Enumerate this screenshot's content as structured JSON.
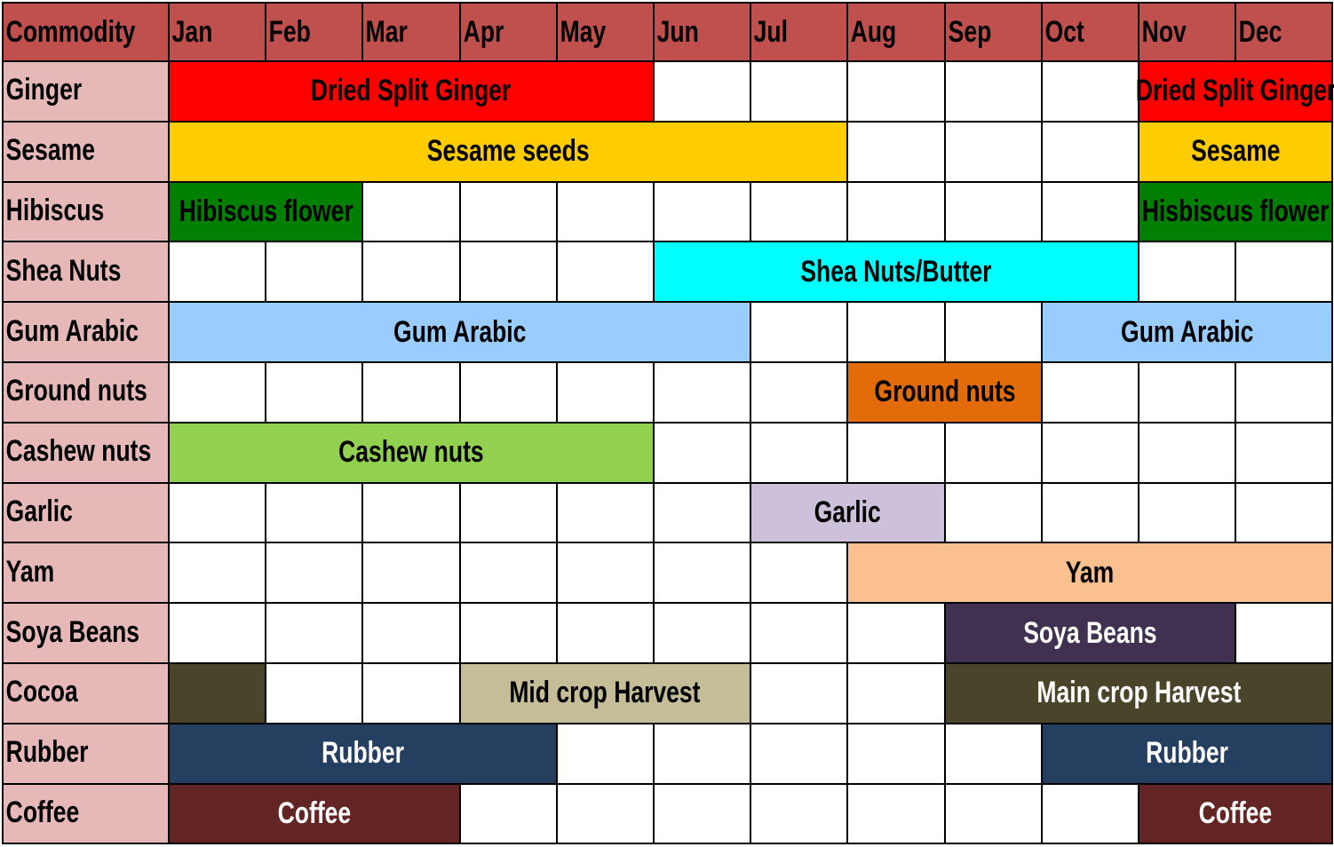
{
  "chart_data": {
    "type": "table",
    "header_label": "Commodity",
    "months": [
      "Jan",
      "Feb",
      "Mar",
      "Apr",
      "May",
      "Jun",
      "Jul",
      "Aug",
      "Sep",
      "Oct",
      "Nov",
      "Dec"
    ],
    "commodities": [
      "Ginger",
      "Sesame",
      "Hibiscus",
      "Shea Nuts",
      "Gum Arabic",
      "Ground nuts",
      "Cashew nuts",
      "Garlic",
      "Yam",
      "Soya Beans",
      "Cocoa",
      "Rubber",
      "Coffee"
    ],
    "colors": {
      "header_bg": "#c0504d",
      "label_bg": "#e6b9b8"
    },
    "bars": [
      {
        "row": 0,
        "start": 0,
        "end": 4,
        "label": "Dried Split Ginger",
        "color": "#ff0000",
        "text_color": "#000000"
      },
      {
        "row": 0,
        "start": 10,
        "end": 11,
        "label": "Dried Split Ginger",
        "color": "#ff0000",
        "text_color": "#000000"
      },
      {
        "row": 1,
        "start": 0,
        "end": 6,
        "label": "Sesame seeds",
        "color": "#ffcc00",
        "text_color": "#000000"
      },
      {
        "row": 1,
        "start": 10,
        "end": 11,
        "label": "Sesame",
        "color": "#ffcc00",
        "text_color": "#000000"
      },
      {
        "row": 2,
        "start": 0,
        "end": 1,
        "label": "Hibiscus flower",
        "color": "#007f00",
        "text_color": "#000000"
      },
      {
        "row": 2,
        "start": 10,
        "end": 11,
        "label": "Hisbiscus flower",
        "color": "#007f00",
        "text_color": "#000000"
      },
      {
        "row": 3,
        "start": 5,
        "end": 9,
        "label": "Shea Nuts/Butter",
        "color": "#00ffff",
        "text_color": "#000000"
      },
      {
        "row": 4,
        "start": 0,
        "end": 5,
        "label": "Gum Arabic",
        "color": "#99ccff",
        "text_color": "#000000"
      },
      {
        "row": 4,
        "start": 9,
        "end": 11,
        "label": "Gum Arabic",
        "color": "#99ccff",
        "text_color": "#000000"
      },
      {
        "row": 5,
        "start": 7,
        "end": 8,
        "label": "Ground nuts",
        "color": "#e36c0a",
        "text_color": "#000000"
      },
      {
        "row": 6,
        "start": 0,
        "end": 4,
        "label": "Cashew nuts",
        "color": "#92d050",
        "text_color": "#000000"
      },
      {
        "row": 7,
        "start": 6,
        "end": 7,
        "label": "Garlic",
        "color": "#ccc0da",
        "text_color": "#000000"
      },
      {
        "row": 8,
        "start": 7,
        "end": 11,
        "label": "Yam",
        "color": "#fac090",
        "text_color": "#000000"
      },
      {
        "row": 9,
        "start": 8,
        "end": 10,
        "label": "Soya Beans",
        "color": "#403151",
        "text_color": "#ffffff"
      },
      {
        "row": 10,
        "start": 0,
        "end": 0,
        "label": "",
        "color": "#4a452a",
        "text_color": "#ffffff"
      },
      {
        "row": 10,
        "start": 3,
        "end": 5,
        "label": "Mid crop Harvest",
        "color": "#c4bd97",
        "text_color": "#000000"
      },
      {
        "row": 10,
        "start": 8,
        "end": 11,
        "label": "Main crop Harvest",
        "color": "#4a452a",
        "text_color": "#ffffff"
      },
      {
        "row": 11,
        "start": 0,
        "end": 3,
        "label": "Rubber",
        "color": "#243f60",
        "text_color": "#ffffff"
      },
      {
        "row": 11,
        "start": 9,
        "end": 11,
        "label": "Rubber",
        "color": "#243f60",
        "text_color": "#ffffff"
      },
      {
        "row": 12,
        "start": 0,
        "end": 2,
        "label": "Coffee",
        "color": "#632523",
        "text_color": "#ffffff"
      },
      {
        "row": 12,
        "start": 10,
        "end": 11,
        "label": "Coffee",
        "color": "#632523",
        "text_color": "#ffffff"
      }
    ]
  }
}
